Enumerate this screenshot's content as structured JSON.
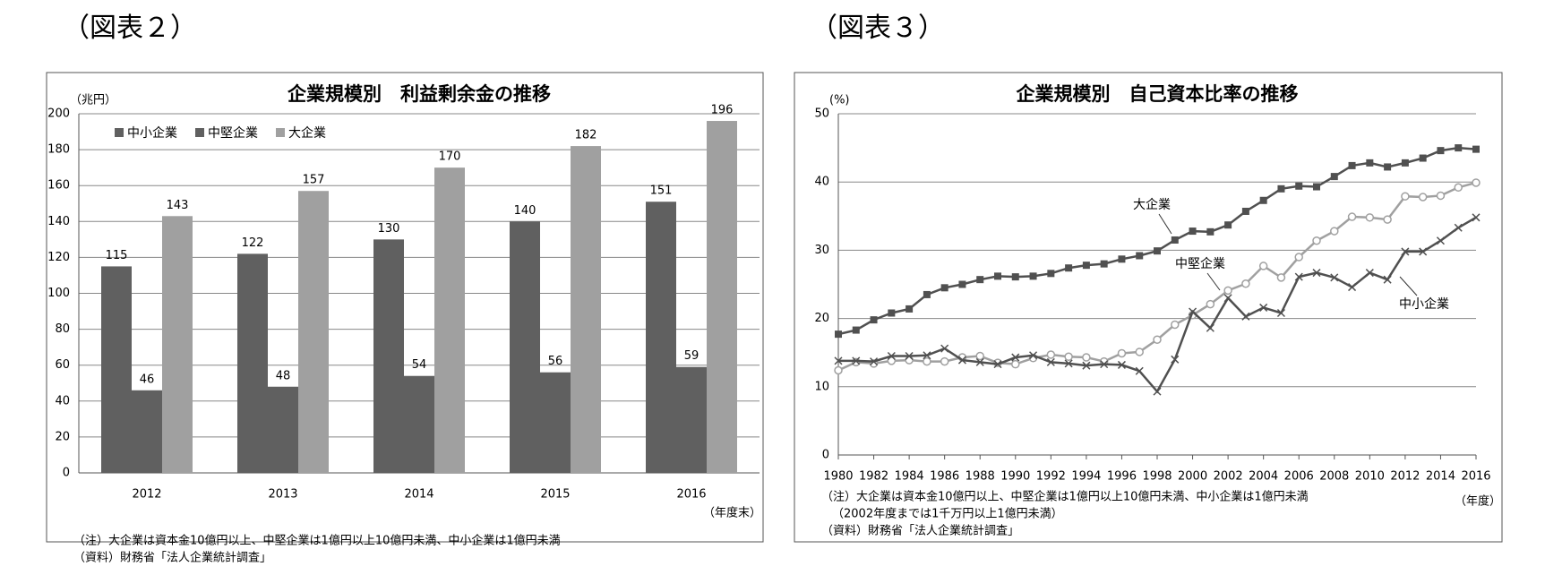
{
  "chart_data": [
    {
      "type": "bar",
      "heading": "（図表２）",
      "title": "企業規模別　利益剰余金の推移",
      "y_label": "（兆円）",
      "x_label": "（年度末）",
      "categories": [
        "2012",
        "2013",
        "2014",
        "2015",
        "2016"
      ],
      "series": [
        {
          "name": "中小企業",
          "color": "#606060",
          "values": [
            115,
            122,
            130,
            140,
            151
          ]
        },
        {
          "name": "中堅企業",
          "color": "#606060",
          "values": [
            46,
            48,
            54,
            56,
            59
          ]
        },
        {
          "name": "大企業",
          "color": "#a0a0a0",
          "values": [
            143,
            157,
            170,
            182,
            196
          ]
        }
      ],
      "ylim": [
        0,
        200
      ],
      "yticks": [
        0,
        20,
        40,
        60,
        80,
        100,
        120,
        140,
        160,
        180,
        200
      ],
      "grid": true,
      "legend": "top-left",
      "notes": [
        "（注）大企業は資本金10億円以上、中堅企業は1億円以上10億円未満、中小企業は1億円未満",
        "（資料）財務省「法人企業統計調査」"
      ]
    },
    {
      "type": "line",
      "heading": "（図表３）",
      "title": "企業規模別　自己資本比率の推移",
      "y_label": "(%)",
      "x_label": "（年度）",
      "x": [
        1980,
        1981,
        1982,
        1983,
        1984,
        1985,
        1986,
        1987,
        1988,
        1989,
        1990,
        1991,
        1992,
        1993,
        1994,
        1995,
        1996,
        1997,
        1998,
        1999,
        2000,
        2001,
        2002,
        2003,
        2004,
        2005,
        2006,
        2007,
        2008,
        2009,
        2010,
        2011,
        2012,
        2013,
        2014,
        2015,
        2016
      ],
      "series": [
        {
          "name": "大企業",
          "color": "#505050",
          "marker": "square",
          "values": [
            17.7,
            18.3,
            19.8,
            20.8,
            21.4,
            23.5,
            24.5,
            25.0,
            25.7,
            26.2,
            26.1,
            26.2,
            26.6,
            27.4,
            27.8,
            28.0,
            28.7,
            29.2,
            29.9,
            31.5,
            32.8,
            32.7,
            33.7,
            35.7,
            37.3,
            39.0,
            39.4,
            39.3,
            40.8,
            42.4,
            42.8,
            42.2,
            42.8,
            43.5,
            44.6,
            45.0,
            44.8
          ]
        },
        {
          "name": "中堅企業",
          "color": "#a0a0a0",
          "marker": "circle",
          "values": [
            12.4,
            13.6,
            13.4,
            13.8,
            13.9,
            13.7,
            13.7,
            14.3,
            14.5,
            13.5,
            13.3,
            14.2,
            14.7,
            14.4,
            14.3,
            13.7,
            14.9,
            15.1,
            16.9,
            19.1,
            20.5,
            22.1,
            24.1,
            25.1,
            27.7,
            26.0,
            29.0,
            31.4,
            32.8,
            34.9,
            34.8,
            34.5,
            37.9,
            37.8,
            38.0,
            39.2,
            39.9
          ]
        },
        {
          "name": "中小企業",
          "color": "#505050",
          "marker": "x",
          "values": [
            13.8,
            13.8,
            13.7,
            14.5,
            14.5,
            14.6,
            15.6,
            13.9,
            13.6,
            13.3,
            14.3,
            14.6,
            13.6,
            13.4,
            13.1,
            13.3,
            13.2,
            12.3,
            9.3,
            14.0,
            21.0,
            18.6,
            23.0,
            20.3,
            21.6,
            20.8,
            26.1,
            26.7,
            26.0,
            24.6,
            26.7,
            25.7,
            29.8,
            29.8,
            31.4,
            33.3,
            34.8
          ]
        }
      ],
      "xlim": [
        1980,
        2016
      ],
      "xticks": [
        1980,
        1982,
        1984,
        1986,
        1988,
        1990,
        1992,
        1994,
        1996,
        1998,
        2000,
        2002,
        2004,
        2006,
        2008,
        2010,
        2012,
        2014,
        2016
      ],
      "ylim": [
        0,
        50
      ],
      "yticks": [
        0,
        10,
        20,
        30,
        40,
        50
      ],
      "grid": true,
      "notes": [
        "（注）大企業は資本金10億円以上、中堅企業は1億円以上10億円未満、中小企業は1億円未満",
        "（2002年度までは1千万円以上1億円未満）",
        "（資料）財務省「法人企業統計調査」"
      ]
    }
  ]
}
